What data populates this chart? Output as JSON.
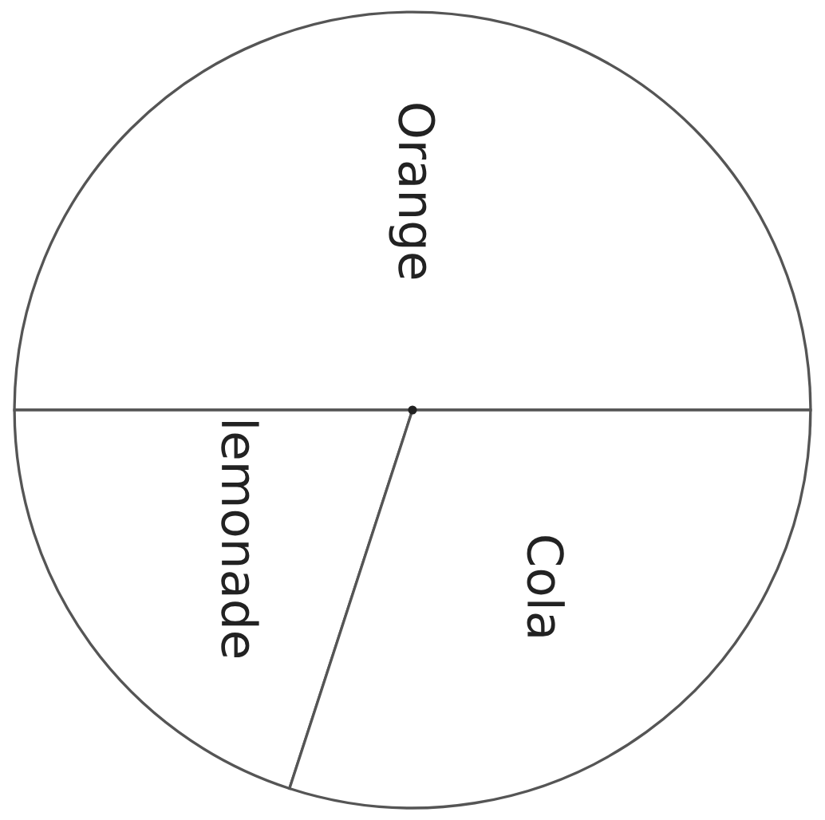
{
  "chart_data": {
    "type": "pie",
    "categories": [
      "Orange",
      "lemonade",
      "Cola"
    ],
    "values": [
      50,
      20,
      30
    ],
    "colors": [
      "#ffffff",
      "#ffffff",
      "#ffffff"
    ]
  }
}
